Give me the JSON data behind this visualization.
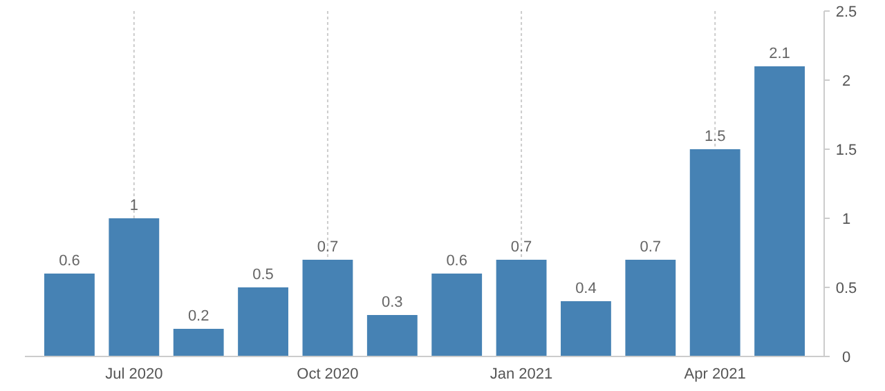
{
  "chart_data": {
    "type": "bar",
    "categories": [
      null,
      "Jul 2020",
      null,
      null,
      "Oct 2020",
      null,
      null,
      "Jan 2021",
      null,
      null,
      "Apr 2021",
      null
    ],
    "values": [
      0.6,
      1,
      0.2,
      0.5,
      0.7,
      0.3,
      0.6,
      0.7,
      0.4,
      0.7,
      1.5,
      2.1
    ],
    "color": "#4682b4",
    "ylim": [
      0,
      2.5
    ],
    "yticks": [
      0,
      0.5,
      1,
      1.5,
      2,
      2.5
    ],
    "grid": "x",
    "data_labels": true
  }
}
